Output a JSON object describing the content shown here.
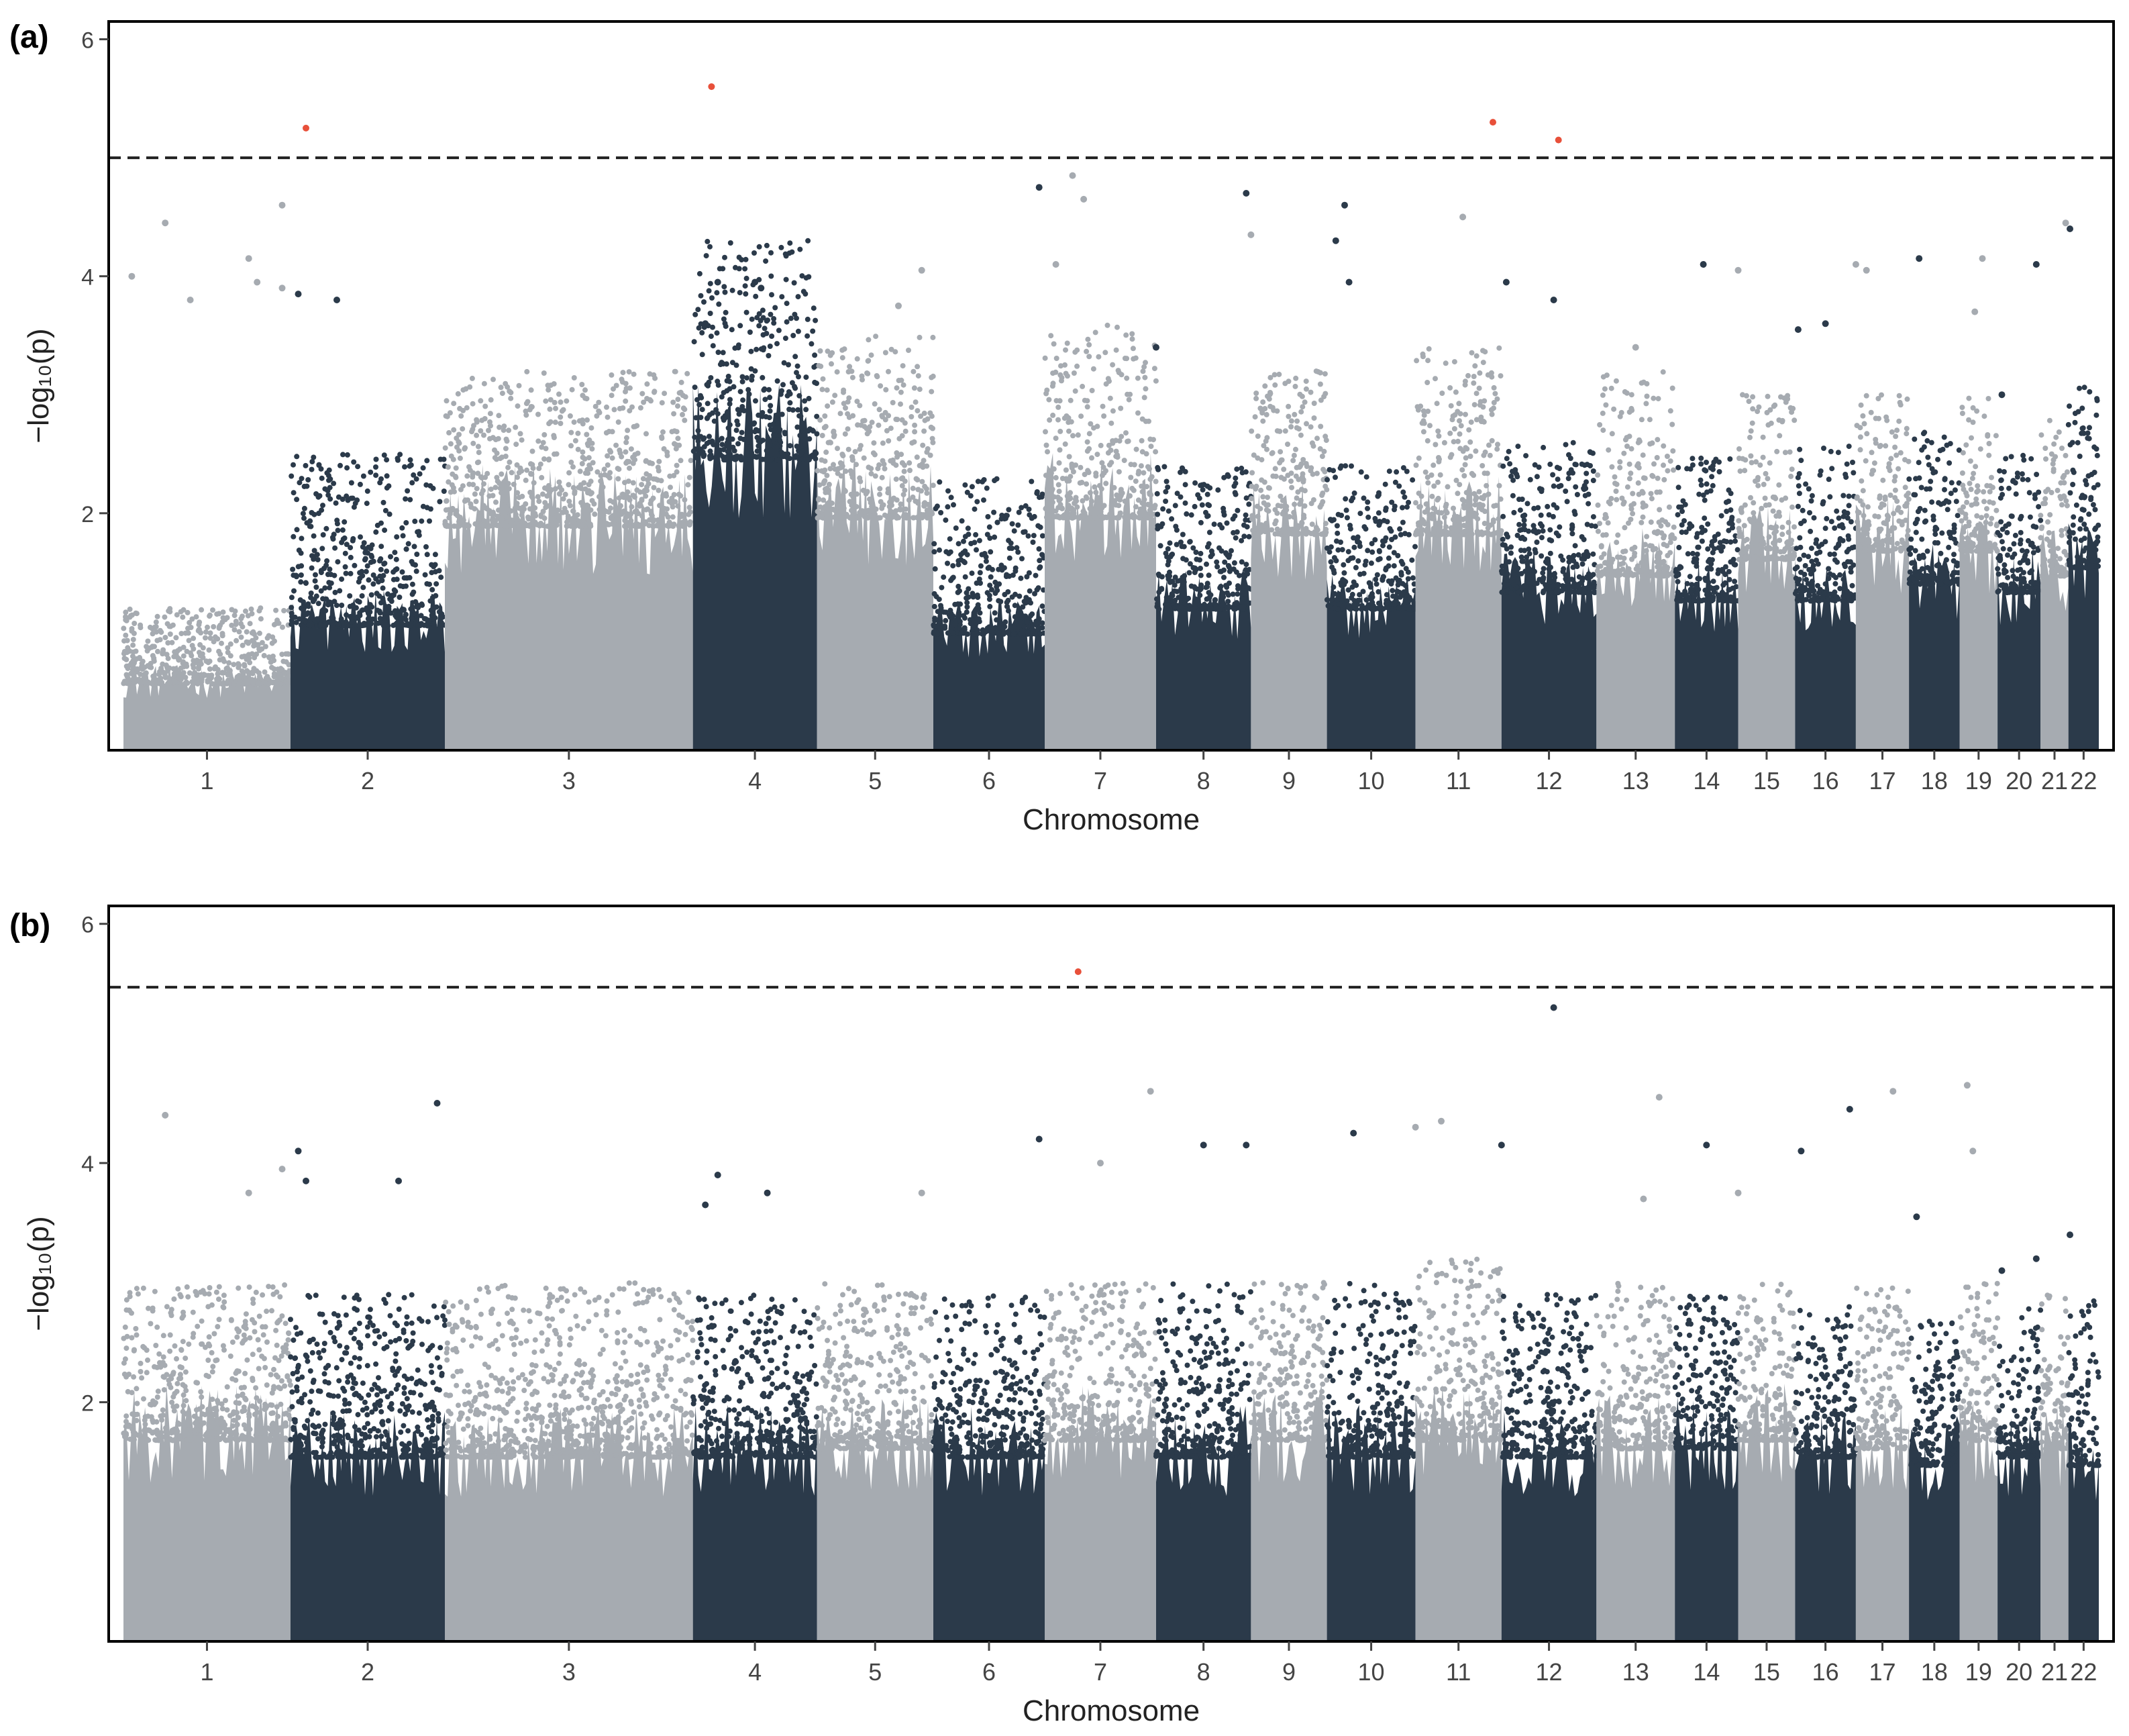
{
  "colors": {
    "dark": "#2b3a4a",
    "light": "#a6abb1",
    "hit": "#e8503a",
    "frame": "#000000",
    "threshold": "#222222"
  },
  "chart_data": [
    {
      "panel": "(a)",
      "type": "scatter",
      "subtype": "manhattan",
      "xlabel": "Chromosome",
      "ylabel": "−log₁₀(p)",
      "ylim": [
        0,
        6.15
      ],
      "yticks": [
        2,
        4,
        6
      ],
      "threshold": 5.0,
      "chromosomes": [
        {
          "label": "1",
          "bounds": [
            0.8,
            1.2
          ],
          "max": 4.6,
          "peaks": [
            {
              "pos": 0.95,
              "val": 4.6
            },
            {
              "pos": 1.25,
              "val": 4.45
            },
            {
              "pos": 1.05,
              "val": 4.0
            },
            {
              "pos": 1.4,
              "val": 3.8
            }
          ]
        },
        {
          "label": "2",
          "bounds": [
            1.5,
            2.5
          ],
          "max": 4.15,
          "peaks": [
            {
              "pos": 1.75,
              "val": 4.15
            },
            {
              "pos": 1.8,
              "val": 3.95
            },
            {
              "pos": 1.95,
              "val": 3.9
            }
          ]
        },
        {
          "label": "3",
          "bounds": [
            2.7,
            3.2
          ],
          "max": 5.25,
          "peaks": [
            {
              "pos": 2.1,
              "val": 5.25
            },
            {
              "pos": 2.05,
              "val": 3.85
            },
            {
              "pos": 2.3,
              "val": 3.8
            }
          ]
        },
        {
          "label": "4",
          "bounds": [
            3.5,
            4.3
          ],
          "max": 5.6,
          "peaks": [
            {
              "pos": 4.15,
              "val": 5.6
            },
            {
              "pos": 4.2,
              "val": 3.95
            },
            {
              "pos": 4.1,
              "val": 3.6
            }
          ]
        },
        {
          "label": "5",
          "bounds": [
            2.8,
            3.5
          ],
          "max": 3.95,
          "peaks": [
            {
              "pos": 4.5,
              "val": 3.95
            },
            {
              "pos": 4.55,
              "val": 3.9
            }
          ]
        },
        {
          "label": "6",
          "bounds": [
            1.4,
            2.3
          ],
          "max": 4.05,
          "peaks": [
            {
              "pos": 5.9,
              "val": 4.05
            },
            {
              "pos": 5.7,
              "val": 3.75
            }
          ]
        },
        {
          "label": "7",
          "bounds": [
            2.8,
            3.6
          ],
          "max": 4.85,
          "peaks": [
            {
              "pos": 7.25,
              "val": 4.85
            },
            {
              "pos": 6.95,
              "val": 4.75
            },
            {
              "pos": 7.35,
              "val": 4.65
            },
            {
              "pos": 7.1,
              "val": 4.1
            }
          ]
        },
        {
          "label": "8",
          "bounds": [
            1.7,
            2.4
          ],
          "max": 3.4,
          "peaks": [
            {
              "pos": 8.0,
              "val": 3.4
            }
          ]
        },
        {
          "label": "9",
          "bounds": [
            2.6,
            3.2
          ],
          "max": 4.7,
          "peaks": [
            {
              "pos": 8.95,
              "val": 4.7
            },
            {
              "pos": 9.0,
              "val": 4.35
            }
          ]
        },
        {
          "label": "10",
          "bounds": [
            1.7,
            2.4
          ],
          "max": 4.6,
          "peaks": [
            {
              "pos": 10.2,
              "val": 4.6
            },
            {
              "pos": 10.1,
              "val": 4.3
            },
            {
              "pos": 10.25,
              "val": 3.95
            }
          ]
        },
        {
          "label": "11",
          "bounds": [
            2.6,
            3.4
          ],
          "max": 5.3,
          "peaks": [
            {
              "pos": 11.9,
              "val": 5.3
            },
            {
              "pos": 11.55,
              "val": 4.5
            }
          ]
        },
        {
          "label": "12",
          "bounds": [
            1.9,
            2.6
          ],
          "max": 5.15,
          "peaks": [
            {
              "pos": 12.6,
              "val": 5.15
            },
            {
              "pos": 12.05,
              "val": 3.95
            },
            {
              "pos": 12.55,
              "val": 3.8
            }
          ]
        },
        {
          "label": "13",
          "bounds": [
            2.1,
            3.2
          ],
          "max": 3.4,
          "peaks": [
            {
              "pos": 13.5,
              "val": 3.4
            }
          ]
        },
        {
          "label": "14",
          "bounds": [
            1.8,
            2.5
          ],
          "max": 4.1,
          "peaks": [
            {
              "pos": 14.45,
              "val": 4.1
            }
          ]
        },
        {
          "label": "15",
          "bounds": [
            2.3,
            3.0
          ],
          "max": 4.05,
          "peaks": [
            {
              "pos": 15.0,
              "val": 4.05
            }
          ]
        },
        {
          "label": "16",
          "bounds": [
            1.8,
            2.6
          ],
          "max": 3.6,
          "peaks": [
            {
              "pos": 16.5,
              "val": 3.6
            },
            {
              "pos": 16.05,
              "val": 3.55
            }
          ]
        },
        {
          "label": "17",
          "bounds": [
            2.4,
            3.0
          ],
          "max": 4.1,
          "peaks": [
            {
              "pos": 17.0,
              "val": 4.1
            },
            {
              "pos": 17.2,
              "val": 4.05
            }
          ]
        },
        {
          "label": "18",
          "bounds": [
            2.0,
            2.7
          ],
          "max": 4.15,
          "peaks": [
            {
              "pos": 18.2,
              "val": 4.15
            }
          ]
        },
        {
          "label": "19",
          "bounds": [
            2.4,
            3.0
          ],
          "max": 4.15,
          "peaks": [
            {
              "pos": 19.6,
              "val": 4.15
            },
            {
              "pos": 19.4,
              "val": 3.7
            }
          ]
        },
        {
          "label": "20",
          "bounds": [
            1.9,
            2.5
          ],
          "max": 3.0,
          "peaks": [
            {
              "pos": 20.1,
              "val": 3.0
            }
          ]
        },
        {
          "label": "21",
          "bounds": [
            2.1,
            2.8
          ],
          "max": 4.1,
          "peaks": [
            {
              "pos": 20.9,
              "val": 4.1
            }
          ]
        },
        {
          "label": "22",
          "bounds": [
            2.2,
            3.2
          ],
          "max": 4.45,
          "peaks": [
            {
              "pos": 21.9,
              "val": 4.45
            },
            {
              "pos": 22.05,
              "val": 4.4
            }
          ]
        }
      ]
    },
    {
      "panel": "(b)",
      "type": "scatter",
      "subtype": "manhattan",
      "xlabel": "Chromosome",
      "ylabel": "−log₁₀(p)",
      "ylim": [
        0,
        6.15
      ],
      "yticks": [
        2,
        4,
        6
      ],
      "threshold": 5.47,
      "chromosomes": [
        {
          "label": "1",
          "bounds": [
            2.4,
            3.0
          ],
          "max": 4.4,
          "peaks": [
            {
              "pos": 1.25,
              "val": 4.4
            },
            {
              "pos": 0.95,
              "val": 3.95
            }
          ]
        },
        {
          "label": "2",
          "bounds": [
            2.2,
            2.9
          ],
          "max": 4.1,
          "peaks": [
            {
              "pos": 2.05,
              "val": 4.1
            },
            {
              "pos": 2.1,
              "val": 3.85
            },
            {
              "pos": 1.75,
              "val": 3.75
            }
          ]
        },
        {
          "label": "3",
          "bounds": [
            2.2,
            3.0
          ],
          "max": 4.5,
          "peaks": [
            {
              "pos": 2.95,
              "val": 4.5
            },
            {
              "pos": 2.7,
              "val": 3.85
            }
          ]
        },
        {
          "label": "4",
          "bounds": [
            2.2,
            2.9
          ],
          "max": 3.9,
          "peaks": [
            {
              "pos": 4.2,
              "val": 3.9
            },
            {
              "pos": 4.1,
              "val": 3.65
            }
          ]
        },
        {
          "label": "5",
          "bounds": [
            2.3,
            3.0
          ],
          "max": 3.75,
          "peaks": [
            {
              "pos": 4.6,
              "val": 3.75
            }
          ]
        },
        {
          "label": "6",
          "bounds": [
            2.2,
            2.9
          ],
          "max": 3.75,
          "peaks": [
            {
              "pos": 5.9,
              "val": 3.75
            }
          ]
        },
        {
          "label": "7",
          "bounds": [
            2.4,
            3.0
          ],
          "max": 5.6,
          "peaks": [
            {
              "pos": 7.3,
              "val": 5.6
            },
            {
              "pos": 6.95,
              "val": 4.2
            },
            {
              "pos": 7.5,
              "val": 4.0
            }
          ]
        },
        {
          "label": "8",
          "bounds": [
            2.2,
            3.0
          ],
          "max": 4.6,
          "peaks": [
            {
              "pos": 7.95,
              "val": 4.6
            },
            {
              "pos": 8.5,
              "val": 4.15
            }
          ]
        },
        {
          "label": "9",
          "bounds": [
            2.4,
            3.0
          ],
          "max": 4.15,
          "peaks": [
            {
              "pos": 8.95,
              "val": 4.15
            }
          ]
        },
        {
          "label": "10",
          "bounds": [
            2.2,
            3.0
          ],
          "max": 4.25,
          "peaks": [
            {
              "pos": 10.3,
              "val": 4.25
            }
          ]
        },
        {
          "label": "11",
          "bounds": [
            2.4,
            3.2
          ],
          "max": 4.35,
          "peaks": [
            {
              "pos": 11.3,
              "val": 4.35
            },
            {
              "pos": 11.0,
              "val": 4.3
            }
          ]
        },
        {
          "label": "12",
          "bounds": [
            2.2,
            2.9
          ],
          "max": 5.3,
          "peaks": [
            {
              "pos": 12.55,
              "val": 5.3
            },
            {
              "pos": 12.0,
              "val": 4.15
            }
          ]
        },
        {
          "label": "13",
          "bounds": [
            2.3,
            3.0
          ],
          "max": 3.7,
          "peaks": [
            {
              "pos": 13.6,
              "val": 3.7
            }
          ]
        },
        {
          "label": "14",
          "bounds": [
            2.3,
            2.9
          ],
          "max": 4.55,
          "peaks": [
            {
              "pos": 13.8,
              "val": 4.55
            },
            {
              "pos": 14.5,
              "val": 4.15
            }
          ]
        },
        {
          "label": "15",
          "bounds": [
            2.4,
            3.0
          ],
          "max": 3.75,
          "peaks": [
            {
              "pos": 15.0,
              "val": 3.75
            }
          ]
        },
        {
          "label": "16",
          "bounds": [
            2.2,
            2.8
          ],
          "max": 4.1,
          "peaks": [
            {
              "pos": 16.1,
              "val": 4.1
            }
          ]
        },
        {
          "label": "17",
          "bounds": [
            2.3,
            3.0
          ],
          "max": 4.45,
          "peaks": [
            {
              "pos": 16.9,
              "val": 4.45
            }
          ]
        },
        {
          "label": "18",
          "bounds": [
            2.1,
            2.7
          ],
          "max": 4.6,
          "peaks": [
            {
              "pos": 17.7,
              "val": 4.6
            },
            {
              "pos": 18.15,
              "val": 3.55
            }
          ]
        },
        {
          "label": "19",
          "bounds": [
            2.4,
            3.0
          ],
          "max": 4.65,
          "peaks": [
            {
              "pos": 19.2,
              "val": 4.65
            },
            {
              "pos": 19.35,
              "val": 4.1
            }
          ]
        },
        {
          "label": "20",
          "bounds": [
            2.2,
            2.8
          ],
          "max": 3.1,
          "peaks": [
            {
              "pos": 20.1,
              "val": 3.1
            }
          ]
        },
        {
          "label": "21",
          "bounds": [
            2.3,
            2.9
          ],
          "max": 3.2,
          "peaks": [
            {
              "pos": 20.9,
              "val": 3.2
            }
          ]
        },
        {
          "label": "22",
          "bounds": [
            2.1,
            2.9
          ],
          "max": 3.4,
          "peaks": [
            {
              "pos": 22.05,
              "val": 3.4
            }
          ]
        }
      ]
    }
  ]
}
